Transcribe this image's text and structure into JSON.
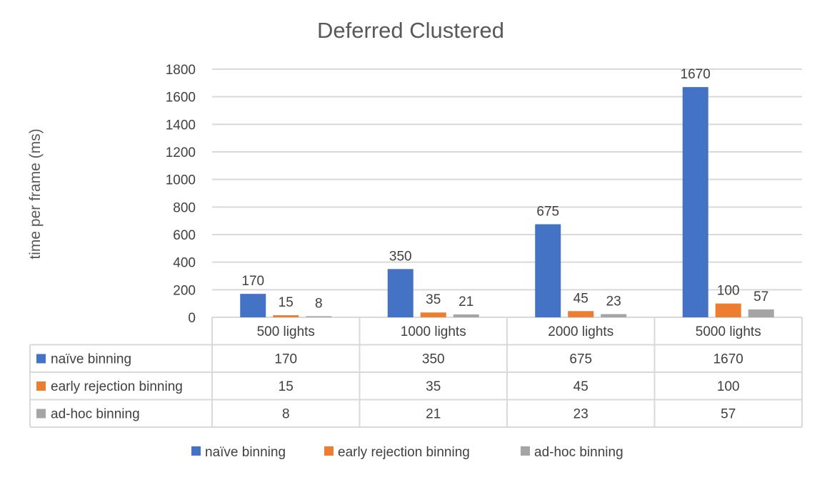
{
  "chart_data": {
    "type": "bar",
    "title": "Deferred Clustered",
    "xlabel": "",
    "ylabel": "time per frame (ms)",
    "ylim": [
      0,
      1800
    ],
    "yticks": [
      0,
      200,
      400,
      600,
      800,
      1000,
      1200,
      1400,
      1600,
      1800
    ],
    "grid": true,
    "legend_position": "bottom",
    "data_table": true,
    "categories": [
      "500 lights",
      "1000 lights",
      "2000 lights",
      "5000 lights"
    ],
    "series": [
      {
        "name": "naïve binning",
        "color": "#4472C4",
        "values": [
          170,
          350,
          675,
          1670
        ]
      },
      {
        "name": "early rejection binning",
        "color": "#ED7D31",
        "values": [
          15,
          35,
          45,
          100
        ]
      },
      {
        "name": "ad-hoc binning",
        "color": "#A5A5A5",
        "values": [
          8,
          21,
          23,
          57
        ]
      }
    ]
  }
}
